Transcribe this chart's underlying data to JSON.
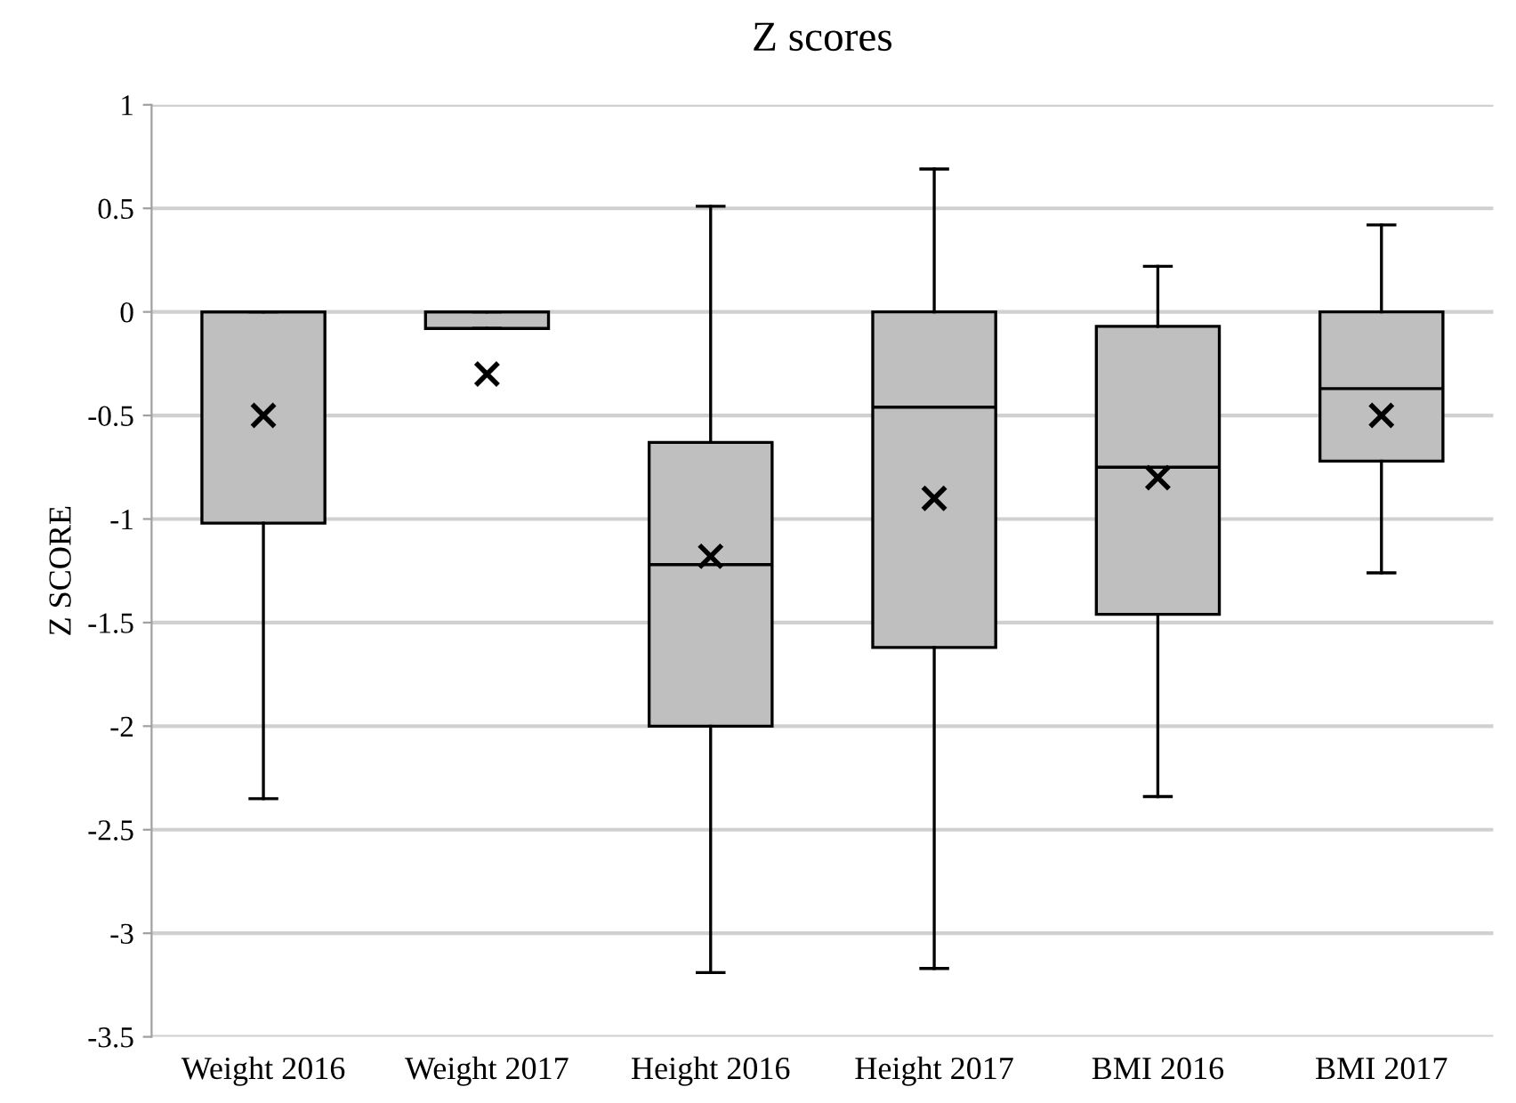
{
  "chart_data": {
    "type": "box",
    "title": "Z scores",
    "ylabel": "Z SCORE",
    "categories": [
      "Weight 2016",
      "Weight 2017",
      "Height 2016",
      "Height 2017",
      "BMI 2016",
      "BMI 2017"
    ],
    "boxes": [
      {
        "low": -2.35,
        "q1": -1.02,
        "median": 0,
        "q3": 0,
        "high": 0,
        "mean": -0.5
      },
      {
        "low": -0.08,
        "q1": -0.08,
        "median": 0,
        "q3": 0,
        "high": 0,
        "mean": -0.3
      },
      {
        "low": -3.19,
        "q1": -2,
        "median": -1.22,
        "q3": -0.63,
        "high": 0.51,
        "mean": -1.18
      },
      {
        "low": -3.17,
        "q1": -1.62,
        "median": -0.46,
        "q3": 0,
        "high": 0.69,
        "mean": -0.9
      },
      {
        "low": -2.34,
        "q1": -1.46,
        "median": -0.75,
        "q3": -0.07,
        "high": 0.22,
        "mean": -0.8
      },
      {
        "low": -1.26,
        "q1": -0.72,
        "median": -0.37,
        "q3": 0,
        "high": 0.42,
        "mean": -0.5
      }
    ],
    "color": "#bfbfbf",
    "ylim": [
      -3.5,
      1
    ],
    "yticks": [
      -3.5,
      -3,
      -2.5,
      -2,
      -1.5,
      -1,
      -0.5,
      0,
      0.5,
      1
    ],
    "grid": "y",
    "marker": "cross",
    "legend": false
  }
}
